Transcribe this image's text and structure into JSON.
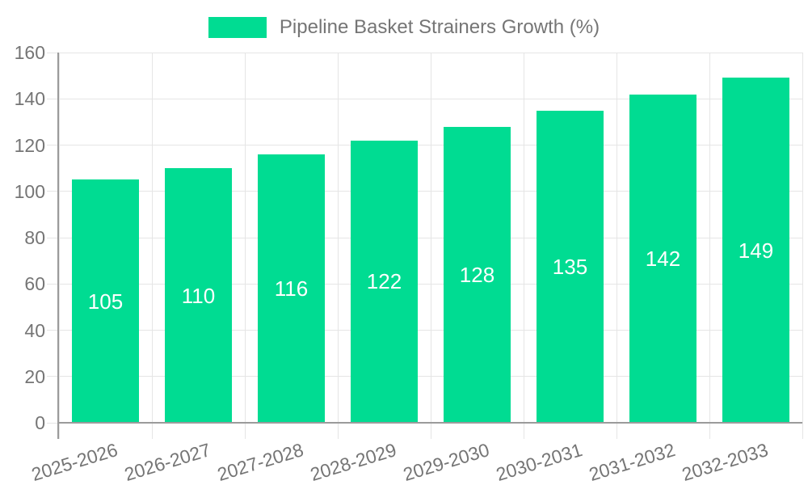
{
  "legend": {
    "label": "Pipeline Basket Strainers Growth (%)"
  },
  "chart_data": {
    "type": "bar",
    "title": "Pipeline Basket Strainers Growth (%)",
    "categories": [
      "2025-2026",
      "2026-2027",
      "2027-2028",
      "2028-2029",
      "2029-2030",
      "2030-2031",
      "2031-2032",
      "2032-2033"
    ],
    "values": [
      105,
      110,
      116,
      122,
      128,
      135,
      142,
      149
    ],
    "value_labels": [
      "105",
      "110",
      "116",
      "122",
      "128",
      "135",
      "142",
      "149"
    ],
    "xlabel": "",
    "ylabel": "",
    "ylim": [
      0,
      160
    ],
    "ytick_step": 20,
    "ytick_labels": [
      "0",
      "20",
      "40",
      "60",
      "80",
      "100",
      "120",
      "140",
      "160"
    ],
    "grid": true,
    "legend_position": "top"
  },
  "colors": {
    "bar": "#00DC92",
    "grid": "#E5E5E5",
    "axis": "#9B9B9B",
    "tick_text": "#757575",
    "value_text": "#FFFFFF",
    "background": "#FFFFFF"
  }
}
